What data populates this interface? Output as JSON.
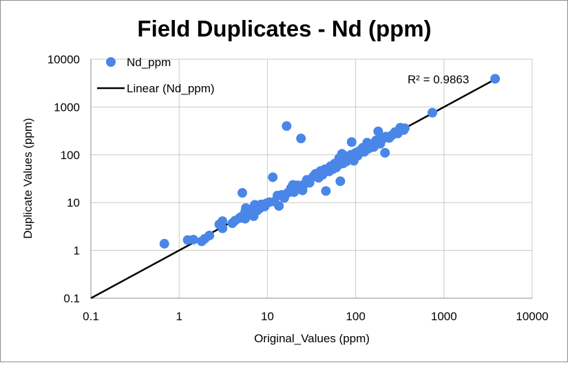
{
  "chart_data": {
    "type": "scatter",
    "title": "Field Duplicates  - Nd (ppm)",
    "xlabel": "Original_Values (ppm)",
    "ylabel": "Duplicate Values (ppm)",
    "xscale": "log",
    "yscale": "log",
    "xlim": [
      0.1,
      10000
    ],
    "ylim": [
      0.1,
      10000
    ],
    "xticks": [
      "0.1",
      "1",
      "10",
      "100",
      "1000",
      "10000"
    ],
    "yticks": [
      "0.1",
      "1",
      "10",
      "100",
      "1000",
      "10000"
    ],
    "grid": true,
    "legend_position": "top-left",
    "series": [
      {
        "name": "Nd_ppm",
        "kind": "scatter",
        "color": "#4a86e8",
        "points": [
          [
            0.68,
            1.38
          ],
          [
            1.25,
            1.65
          ],
          [
            1.45,
            1.68
          ],
          [
            1.8,
            1.55
          ],
          [
            1.95,
            1.75
          ],
          [
            2.2,
            2.05
          ],
          [
            2.85,
            3.5
          ],
          [
            3.1,
            2.9
          ],
          [
            3.1,
            4.1
          ],
          [
            4.0,
            3.7
          ],
          [
            4.3,
            4.2
          ],
          [
            4.8,
            4.7
          ],
          [
            5.0,
            5.0
          ],
          [
            5.2,
            16.0
          ],
          [
            5.6,
            4.6
          ],
          [
            5.6,
            6.5
          ],
          [
            5.7,
            7.7
          ],
          [
            6.3,
            7.2
          ],
          [
            6.5,
            5.9
          ],
          [
            7.0,
            5.2
          ],
          [
            7.2,
            9.0
          ],
          [
            7.7,
            6.9
          ],
          [
            8.2,
            7.6
          ],
          [
            8.5,
            9.2
          ],
          [
            9.3,
            8.3
          ],
          [
            9.8,
            9.7
          ],
          [
            10.5,
            10.2
          ],
          [
            11.5,
            34.0
          ],
          [
            12.0,
            10.5
          ],
          [
            13.0,
            14.0
          ],
          [
            13.5,
            8.5
          ],
          [
            14.5,
            14.5
          ],
          [
            15.5,
            12.5
          ],
          [
            16.5,
            400.0
          ],
          [
            17.0,
            16.0
          ],
          [
            18.5,
            20.0
          ],
          [
            19.5,
            23.5
          ],
          [
            20.0,
            16.5
          ],
          [
            22.0,
            23.0
          ],
          [
            24.0,
            220.0
          ],
          [
            25.0,
            18.0
          ],
          [
            26.0,
            24.0
          ],
          [
            28.0,
            30.0
          ],
          [
            30.0,
            26.0
          ],
          [
            33.0,
            35.0
          ],
          [
            35.0,
            40.0
          ],
          [
            38.0,
            33.0
          ],
          [
            40.0,
            46.0
          ],
          [
            42.0,
            38.0
          ],
          [
            45.0,
            50.0
          ],
          [
            46.0,
            17.5
          ],
          [
            50.0,
            45.0
          ],
          [
            52.0,
            58.0
          ],
          [
            55.0,
            50.0
          ],
          [
            58.0,
            66.0
          ],
          [
            60.0,
            54.0
          ],
          [
            63.0,
            60.0
          ],
          [
            65.0,
            85.0
          ],
          [
            67.0,
            28.0
          ],
          [
            68.0,
            75.0
          ],
          [
            70.0,
            105.0
          ],
          [
            72.0,
            66.0
          ],
          [
            75.0,
            95.0
          ],
          [
            78.0,
            72.0
          ],
          [
            80.0,
            88.0
          ],
          [
            85.0,
            80.0
          ],
          [
            88.0,
            100.0
          ],
          [
            90.0,
            185.0
          ],
          [
            95.0,
            75.0
          ],
          [
            100.0,
            110.0
          ],
          [
            105.0,
            95.0
          ],
          [
            110.0,
            120.0
          ],
          [
            120.0,
            140.0
          ],
          [
            125.0,
            115.0
          ],
          [
            135.0,
            180.0
          ],
          [
            140.0,
            135.0
          ],
          [
            150.0,
            150.0
          ],
          [
            160.0,
            145.0
          ],
          [
            170.0,
            200.0
          ],
          [
            180.0,
            310.0
          ],
          [
            190.0,
            170.0
          ],
          [
            200.0,
            210.0
          ],
          [
            215.0,
            110.0
          ],
          [
            220.0,
            240.0
          ],
          [
            240.0,
            225.0
          ],
          [
            260.0,
            260.0
          ],
          [
            280.0,
            300.0
          ],
          [
            300.0,
            280.0
          ],
          [
            320.0,
            370.0
          ],
          [
            350.0,
            330.0
          ],
          [
            360.0,
            360.0
          ],
          [
            740.0,
            760.0
          ],
          [
            3800.0,
            3900.0
          ]
        ]
      },
      {
        "name": "Linear (Nd_ppm)",
        "kind": "trendline",
        "color": "#000000",
        "points": [
          [
            0.1,
            0.1
          ],
          [
            4000.0,
            4000.0
          ]
        ]
      }
    ],
    "annotations": [
      {
        "text": "R² = 0.9863"
      }
    ]
  }
}
